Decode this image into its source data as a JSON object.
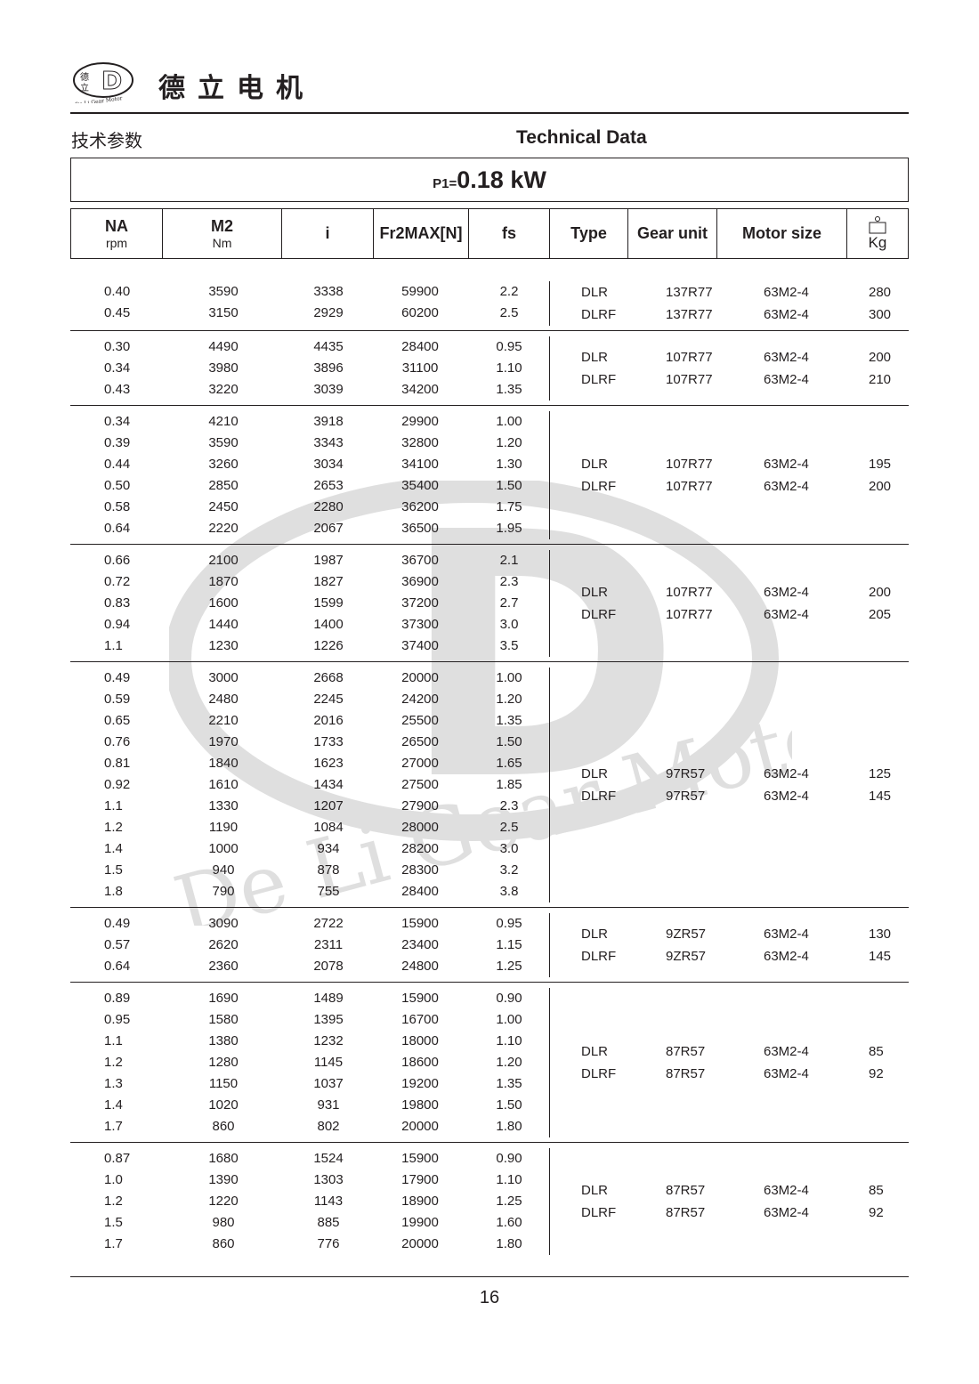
{
  "header": {
    "brand": "德立电机",
    "logo_text": "De Li Gear Motor",
    "cn_title": "技术参数",
    "en_title": "Technical Data"
  },
  "power": {
    "label": "P1=",
    "value": "0.18 kW"
  },
  "columns": {
    "na": "NA",
    "na_unit": "rpm",
    "m2": "M2",
    "m2_unit": "Nm",
    "i": "i",
    "fr": "Fr2MAX[N]",
    "fs": "fs",
    "type": "Type",
    "gear": "Gear unit",
    "motor": "Motor size",
    "kg": "Kg",
    "kg_icon": "weight-icon"
  },
  "groups": [
    {
      "rows": [
        [
          "0.40",
          "3590",
          "3338",
          "59900",
          "2.2"
        ],
        [
          "0.45",
          "3150",
          "2929",
          "60200",
          "2.5"
        ]
      ],
      "units": [
        [
          "DLR",
          "137R77",
          "63M2-4",
          "280"
        ],
        [
          "DLRF",
          "137R77",
          "63M2-4",
          "300"
        ]
      ]
    },
    {
      "rows": [
        [
          "0.30",
          "4490",
          "4435",
          "28400",
          "0.95"
        ],
        [
          "0.34",
          "3980",
          "3896",
          "31100",
          "1.10"
        ],
        [
          "0.43",
          "3220",
          "3039",
          "34200",
          "1.35"
        ]
      ],
      "units": [
        [
          "DLR",
          "107R77",
          "63M2-4",
          "200"
        ],
        [
          "DLRF",
          "107R77",
          "63M2-4",
          "210"
        ]
      ]
    },
    {
      "rows": [
        [
          "0.34",
          "4210",
          "3918",
          "29900",
          "1.00"
        ],
        [
          "0.39",
          "3590",
          "3343",
          "32800",
          "1.20"
        ],
        [
          "0.44",
          "3260",
          "3034",
          "34100",
          "1.30"
        ],
        [
          "0.50",
          "2850",
          "2653",
          "35400",
          "1.50"
        ],
        [
          "0.58",
          "2450",
          "2280",
          "36200",
          "1.75"
        ],
        [
          "0.64",
          "2220",
          "2067",
          "36500",
          "1.95"
        ]
      ],
      "units": [
        [
          "DLR",
          "107R77",
          "63M2-4",
          "195"
        ],
        [
          "DLRF",
          "107R77",
          "63M2-4",
          "200"
        ]
      ]
    },
    {
      "rows": [
        [
          "0.66",
          "2100",
          "1987",
          "36700",
          "2.1"
        ],
        [
          "0.72",
          "1870",
          "1827",
          "36900",
          "2.3"
        ],
        [
          "0.83",
          "1600",
          "1599",
          "37200",
          "2.7"
        ],
        [
          "0.94",
          "1440",
          "1400",
          "37300",
          "3.0"
        ],
        [
          "1.1",
          "1230",
          "1226",
          "37400",
          "3.5"
        ]
      ],
      "units": [
        [
          "DLR",
          "107R77",
          "63M2-4",
          "200"
        ],
        [
          "DLRF",
          "107R77",
          "63M2-4",
          "205"
        ]
      ]
    },
    {
      "rows": [
        [
          "0.49",
          "3000",
          "2668",
          "20000",
          "1.00"
        ],
        [
          "0.59",
          "2480",
          "2245",
          "24200",
          "1.20"
        ],
        [
          "0.65",
          "2210",
          "2016",
          "25500",
          "1.35"
        ],
        [
          "0.76",
          "1970",
          "1733",
          "26500",
          "1.50"
        ],
        [
          "0.81",
          "1840",
          "1623",
          "27000",
          "1.65"
        ],
        [
          "0.92",
          "1610",
          "1434",
          "27500",
          "1.85"
        ],
        [
          "1.1",
          "1330",
          "1207",
          "27900",
          "2.3"
        ],
        [
          "1.2",
          "1190",
          "1084",
          "28000",
          "2.5"
        ],
        [
          "1.4",
          "1000",
          "934",
          "28200",
          "3.0"
        ],
        [
          "1.5",
          "940",
          "878",
          "28300",
          "3.2"
        ],
        [
          "1.8",
          "790",
          "755",
          "28400",
          "3.8"
        ]
      ],
      "units": [
        [
          "DLR",
          "97R57",
          "63M2-4",
          "125"
        ],
        [
          "DLRF",
          "97R57",
          "63M2-4",
          "145"
        ]
      ]
    },
    {
      "rows": [
        [
          "0.49",
          "3090",
          "2722",
          "15900",
          "0.95"
        ],
        [
          "0.57",
          "2620",
          "2311",
          "23400",
          "1.15"
        ],
        [
          "0.64",
          "2360",
          "2078",
          "24800",
          "1.25"
        ]
      ],
      "units": [
        [
          "DLR",
          "9ZR57",
          "63M2-4",
          "130"
        ],
        [
          "DLRF",
          "9ZR57",
          "63M2-4",
          "145"
        ]
      ]
    },
    {
      "rows": [
        [
          "0.89",
          "1690",
          "1489",
          "15900",
          "0.90"
        ],
        [
          "0.95",
          "1580",
          "1395",
          "16700",
          "1.00"
        ],
        [
          "1.1",
          "1380",
          "1232",
          "18000",
          "1.10"
        ],
        [
          "1.2",
          "1280",
          "1145",
          "18600",
          "1.20"
        ],
        [
          "1.3",
          "1150",
          "1037",
          "19200",
          "1.35"
        ],
        [
          "1.4",
          "1020",
          "931",
          "19800",
          "1.50"
        ],
        [
          "1.7",
          "860",
          "802",
          "20000",
          "1.80"
        ]
      ],
      "units": [
        [
          "DLR",
          "87R57",
          "63M2-4",
          "85"
        ],
        [
          "DLRF",
          "87R57",
          "63M2-4",
          "92"
        ]
      ]
    },
    {
      "rows": [
        [
          "0.87",
          "1680",
          "1524",
          "15900",
          "0.90"
        ],
        [
          "1.0",
          "1390",
          "1303",
          "17900",
          "1.10"
        ],
        [
          "1.2",
          "1220",
          "1143",
          "18900",
          "1.25"
        ],
        [
          "1.5",
          "980",
          "885",
          "19900",
          "1.60"
        ],
        [
          "1.7",
          "860",
          "776",
          "20000",
          "1.80"
        ]
      ],
      "units": [
        [
          "DLR",
          "87R57",
          "63M2-4",
          "85"
        ],
        [
          "DLRF",
          "87R57",
          "63M2-4",
          "92"
        ]
      ]
    }
  ],
  "footer": {
    "page_number": "16"
  }
}
